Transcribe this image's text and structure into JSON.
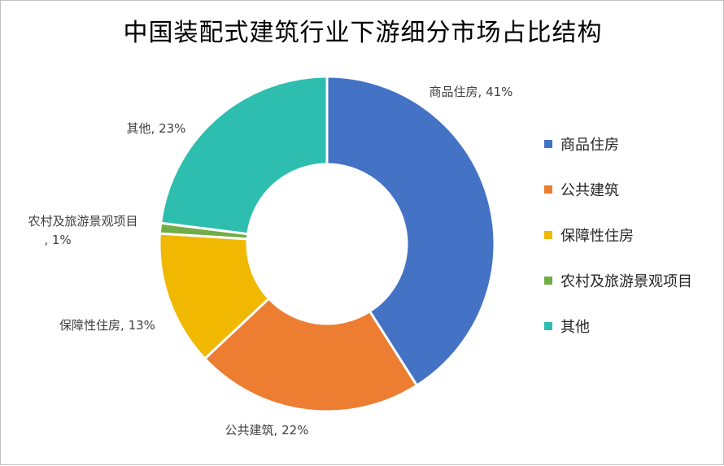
{
  "chart_data": {
    "type": "doughnut",
    "title": "中国装配式建筑行业下游细分市场占比结构",
    "categories": [
      "商品住房",
      "公共建筑",
      "保障性住房",
      "农村及旅游景观项目",
      "其他"
    ],
    "values": [
      41,
      22,
      13,
      1,
      23
    ],
    "unit": "%",
    "colors": [
      "#4472C4",
      "#ED7D31",
      "#F0B800",
      "#70AD47",
      "#2EBEB0"
    ],
    "data_labels": [
      "商品住房, 41%",
      "公共建筑, 22%",
      "保障性住房, 13%",
      "农村及旅游景观项目, 1%",
      "其他, 23%"
    ],
    "legend_position": "right"
  }
}
